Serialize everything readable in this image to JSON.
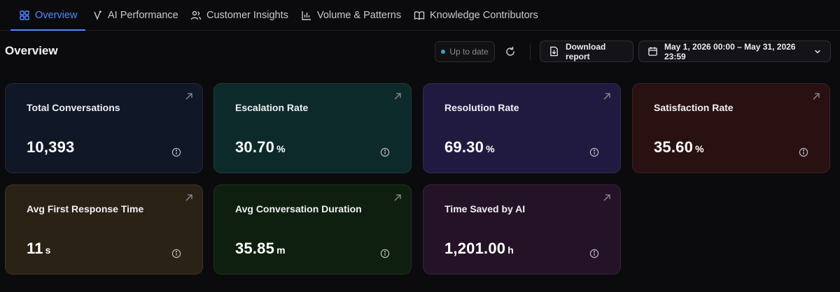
{
  "tabs": [
    {
      "label": "Overview",
      "icon": "grid-icon",
      "active": true
    },
    {
      "label": "AI Performance",
      "icon": "ai-icon",
      "active": false
    },
    {
      "label": "Customer Insights",
      "icon": "users-icon",
      "active": false
    },
    {
      "label": "Volume & Patterns",
      "icon": "bar-chart-icon",
      "active": false
    },
    {
      "label": "Knowledge Contributors",
      "icon": "book-icon",
      "active": false
    }
  ],
  "header": {
    "title": "Overview",
    "status": "Up to date",
    "download_label": "Download report",
    "date_range": "May 1, 2026 00:00 – May 31, 2026 23:59"
  },
  "colors": {
    "accent": "#4f8cff",
    "status_dot": "#3aa0c8"
  },
  "cards": [
    {
      "label": "Total Conversations",
      "value": "10,393",
      "unit": ""
    },
    {
      "label": "Escalation Rate",
      "value": "30.70",
      "unit": "%"
    },
    {
      "label": "Resolution Rate",
      "value": "69.30",
      "unit": "%"
    },
    {
      "label": "Satisfaction Rate",
      "value": "35.60",
      "unit": "%"
    },
    {
      "label": "Avg First Response Time",
      "value": "11",
      "unit": "s"
    },
    {
      "label": "Avg Conversation Duration",
      "value": "35.85",
      "unit": "m"
    },
    {
      "label": "Time Saved by AI",
      "value": "1,201.00",
      "unit": "h"
    }
  ]
}
